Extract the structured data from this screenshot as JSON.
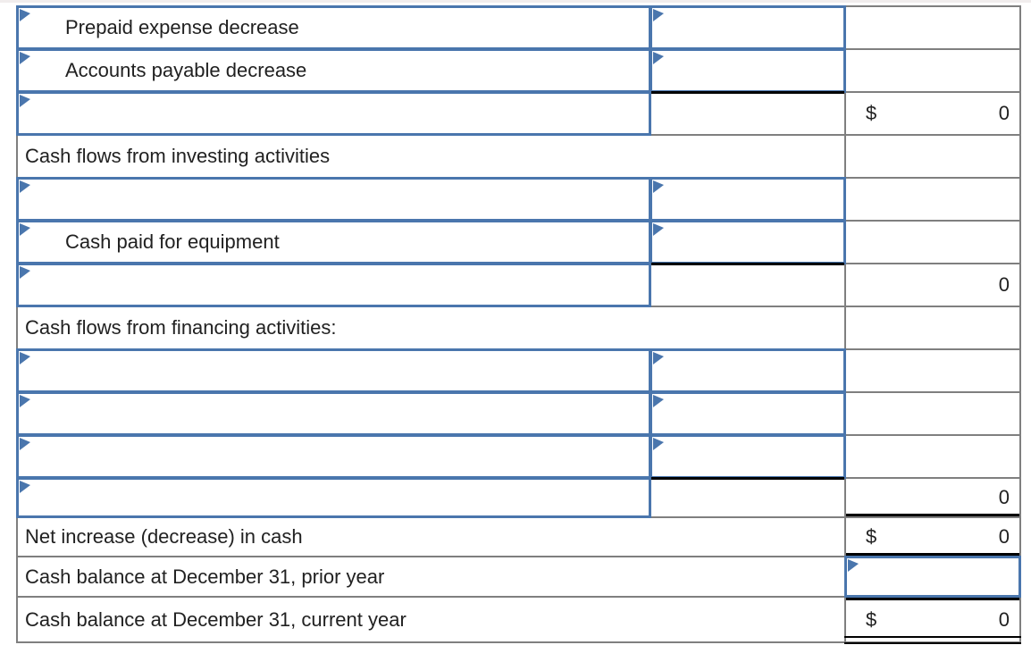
{
  "sheet": {
    "currency_symbol": "$",
    "colors": {
      "input_box_border": "#4a76ad",
      "gridline": "#7f7f7f",
      "accounting_rule": "#000000",
      "text": "#212121"
    },
    "rows": [
      {
        "type": "line-item-input",
        "label": "Prepaid expense decrease",
        "label_box": true,
        "amount_box": true,
        "right": {}
      },
      {
        "type": "line-item-input",
        "label": "Accounts payable decrease",
        "label_box": true,
        "amount_box": true,
        "right": {}
      },
      {
        "type": "section-subtotal",
        "label": "",
        "label_box": true,
        "mid_rule": true,
        "right": {
          "currency": "$",
          "value": "0"
        }
      },
      {
        "type": "section-header",
        "label": "Cash flows from investing activities",
        "merged": true,
        "right": {}
      },
      {
        "type": "line-item-input",
        "label": "",
        "label_box": true,
        "amount_box": true,
        "right": {}
      },
      {
        "type": "line-item-input",
        "label": "Cash paid for equipment",
        "label_box": true,
        "amount_box": true,
        "right": {}
      },
      {
        "type": "section-subtotal",
        "label": "",
        "label_box": true,
        "mid_rule": true,
        "right": {
          "value": "0"
        }
      },
      {
        "type": "section-header",
        "label": "Cash flows from financing activities:",
        "merged": true,
        "right": {}
      },
      {
        "type": "line-item-input",
        "label": "",
        "label_box": true,
        "amount_box": true,
        "right": {}
      },
      {
        "type": "line-item-input",
        "label": "",
        "label_box": true,
        "amount_box": true,
        "right": {}
      },
      {
        "type": "line-item-input",
        "label": "",
        "label_box": true,
        "amount_box": true,
        "right": {}
      },
      {
        "type": "section-subtotal",
        "label": "",
        "label_box": true,
        "mid_rule": true,
        "right": {
          "value": "0",
          "rule_bottom": true
        }
      },
      {
        "type": "total-line",
        "label": "Net increase (decrease) in cash",
        "merged": true,
        "right": {
          "currency": "$",
          "value": "0",
          "rule_bottom": true
        }
      },
      {
        "type": "balance-line-input",
        "label": "Cash balance at December 31, prior year",
        "merged": true,
        "right": {
          "box": true
        }
      },
      {
        "type": "final-total-line",
        "label": "Cash balance at December 31, current year",
        "merged": true,
        "right": {
          "currency": "$",
          "value": "0",
          "rule_top": true,
          "double_bottom": true
        }
      }
    ]
  }
}
